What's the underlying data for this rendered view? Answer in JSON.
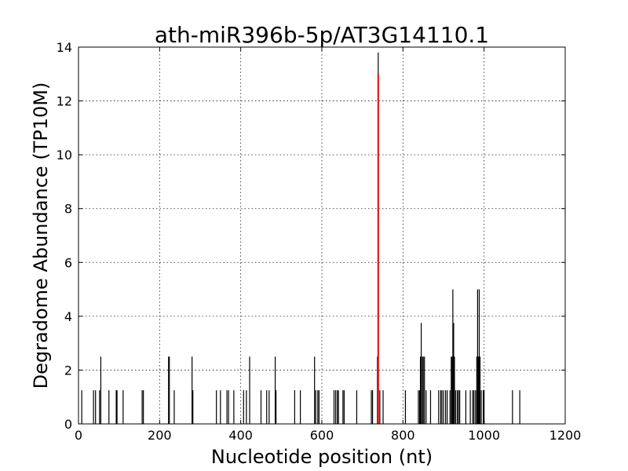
{
  "chart_data": {
    "type": "bar",
    "title": "ath-miR396b-5p/AT3G14110.1",
    "xlabel": "Nucleotide position (nt)",
    "ylabel": "Degradome Abundance (TP10M)",
    "xlim": [
      0,
      1200
    ],
    "ylim": [
      0,
      14
    ],
    "xticks": [
      0,
      200,
      400,
      600,
      800,
      1000,
      1200
    ],
    "yticks": [
      0,
      2,
      4,
      6,
      8,
      10,
      12,
      14
    ],
    "grid": true,
    "series": [
      {
        "values_color": "#000000",
        "points": [
          [
            8,
            1.25
          ],
          [
            37,
            1.25
          ],
          [
            42,
            1.25
          ],
          [
            52,
            1.25
          ],
          [
            55,
            2.5
          ],
          [
            75,
            1.25
          ],
          [
            93,
            1.25
          ],
          [
            95,
            1.25
          ],
          [
            110,
            1.25
          ],
          [
            157,
            1.25
          ],
          [
            160,
            1.25
          ],
          [
            222,
            2.5
          ],
          [
            224,
            2.5
          ],
          [
            236,
            1.25
          ],
          [
            280,
            2.5
          ],
          [
            282,
            1.25
          ],
          [
            340,
            1.25
          ],
          [
            350,
            1.25
          ],
          [
            366,
            1.25
          ],
          [
            370,
            1.25
          ],
          [
            383,
            1.25
          ],
          [
            407,
            1.25
          ],
          [
            414,
            1.25
          ],
          [
            422,
            2.5
          ],
          [
            450,
            1.25
          ],
          [
            464,
            1.25
          ],
          [
            470,
            1.25
          ],
          [
            485,
            2.5
          ],
          [
            487,
            1.25
          ],
          [
            533,
            1.25
          ],
          [
            547,
            1.25
          ],
          [
            582,
            2.5
          ],
          [
            585,
            1.25
          ],
          [
            590,
            1.25
          ],
          [
            593,
            1.25
          ],
          [
            630,
            1.25
          ],
          [
            634,
            1.25
          ],
          [
            638,
            1.25
          ],
          [
            641,
            1.25
          ],
          [
            652,
            1.25
          ],
          [
            655,
            1.25
          ],
          [
            686,
            1.25
          ],
          [
            722,
            1.25
          ],
          [
            725,
            1.25
          ],
          [
            737,
            2.5
          ],
          [
            739,
            13.8
          ],
          [
            743,
            1.25
          ],
          [
            751,
            1.25
          ],
          [
            806,
            1.25
          ],
          [
            838,
            1.25
          ],
          [
            841,
            1.25
          ],
          [
            843,
            2.5
          ],
          [
            845,
            3.75
          ],
          [
            848,
            2.5
          ],
          [
            850,
            2.5
          ],
          [
            853,
            2.5
          ],
          [
            857,
            1.25
          ],
          [
            868,
            1.25
          ],
          [
            888,
            1.25
          ],
          [
            893,
            1.25
          ],
          [
            896,
            1.25
          ],
          [
            900,
            1.25
          ],
          [
            905,
            1.25
          ],
          [
            909,
            1.25
          ],
          [
            916,
            1.25
          ],
          [
            919,
            2.5
          ],
          [
            921,
            2.5
          ],
          [
            923,
            5.0
          ],
          [
            925,
            3.75
          ],
          [
            927,
            2.5
          ],
          [
            930,
            1.25
          ],
          [
            934,
            1.25
          ],
          [
            937,
            1.25
          ],
          [
            940,
            1.25
          ],
          [
            955,
            1.25
          ],
          [
            966,
            1.25
          ],
          [
            972,
            1.25
          ],
          [
            975,
            1.25
          ],
          [
            979,
            1.25
          ],
          [
            982,
            2.5
          ],
          [
            984,
            5.0
          ],
          [
            986,
            2.5
          ],
          [
            988,
            5.0
          ],
          [
            990,
            2.5
          ],
          [
            993,
            1.25
          ],
          [
            998,
            1.25
          ],
          [
            1000,
            1.25
          ],
          [
            1070,
            1.25
          ],
          [
            1088,
            1.25
          ]
        ]
      },
      {
        "values_color": "#e41a1c",
        "points": [
          [
            739,
            13.0
          ]
        ]
      }
    ]
  }
}
